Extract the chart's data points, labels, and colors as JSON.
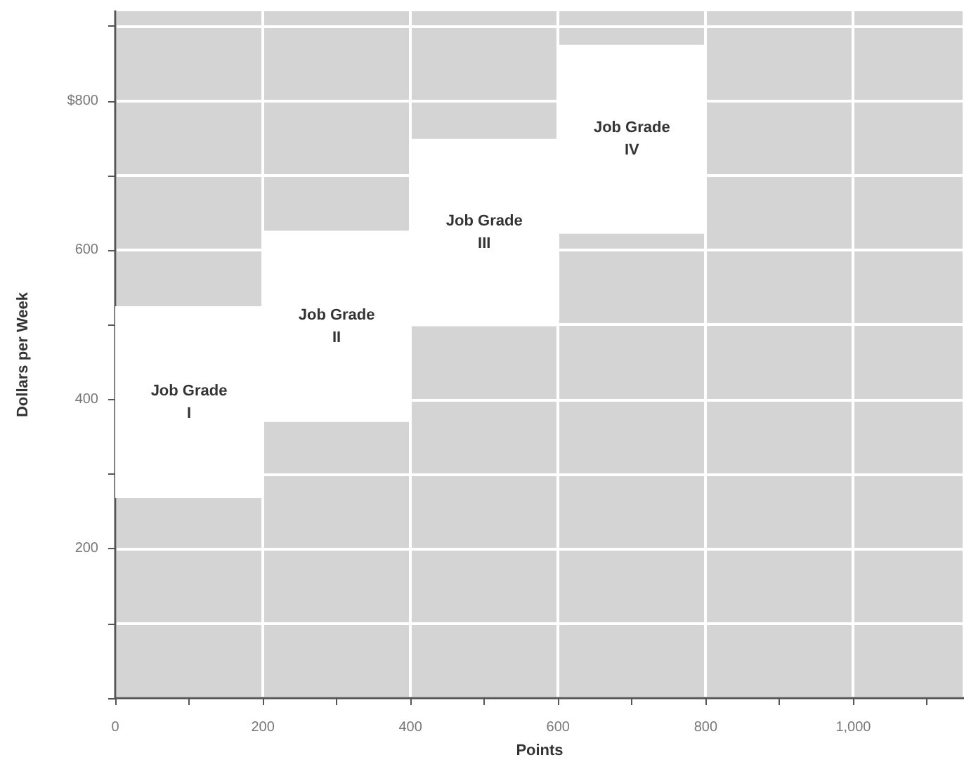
{
  "chart_data": {
    "type": "bar",
    "xlabel": "Points",
    "ylabel": "Dollars per Week",
    "x": [
      100,
      300,
      500,
      700
    ],
    "base": [
      268,
      370,
      498,
      622
    ],
    "values": [
      257,
      256,
      251,
      253
    ],
    "color": "#ffffff",
    "xlim": [
      0,
      1150
    ],
    "ylim": [
      0,
      920
    ],
    "xticks": [
      0,
      {
        "value": 100,
        "label": null
      },
      200,
      {
        "value": 300,
        "label": null
      },
      400,
      {
        "value": 500,
        "label": null
      },
      600,
      {
        "value": 700,
        "label": null
      },
      800,
      {
        "value": 900,
        "label": null
      },
      {
        "value": 1000,
        "label": "1,000"
      },
      {
        "value": 1100,
        "label": null
      }
    ],
    "yticks": [
      {
        "value": 0,
        "label": null
      },
      {
        "value": 100,
        "label": null
      },
      200,
      {
        "value": 300,
        "label": null
      },
      400,
      {
        "value": 500,
        "label": null
      },
      600,
      {
        "value": 700,
        "label": null
      },
      {
        "value": 800,
        "label": "$800"
      },
      {
        "value": 900,
        "label": null
      }
    ],
    "value_labels": [
      "Job Grade\nI",
      "Job Grade\nII",
      "Job Grade\nIII",
      "Job Grade\nIV"
    ],
    "grid": true
  }
}
